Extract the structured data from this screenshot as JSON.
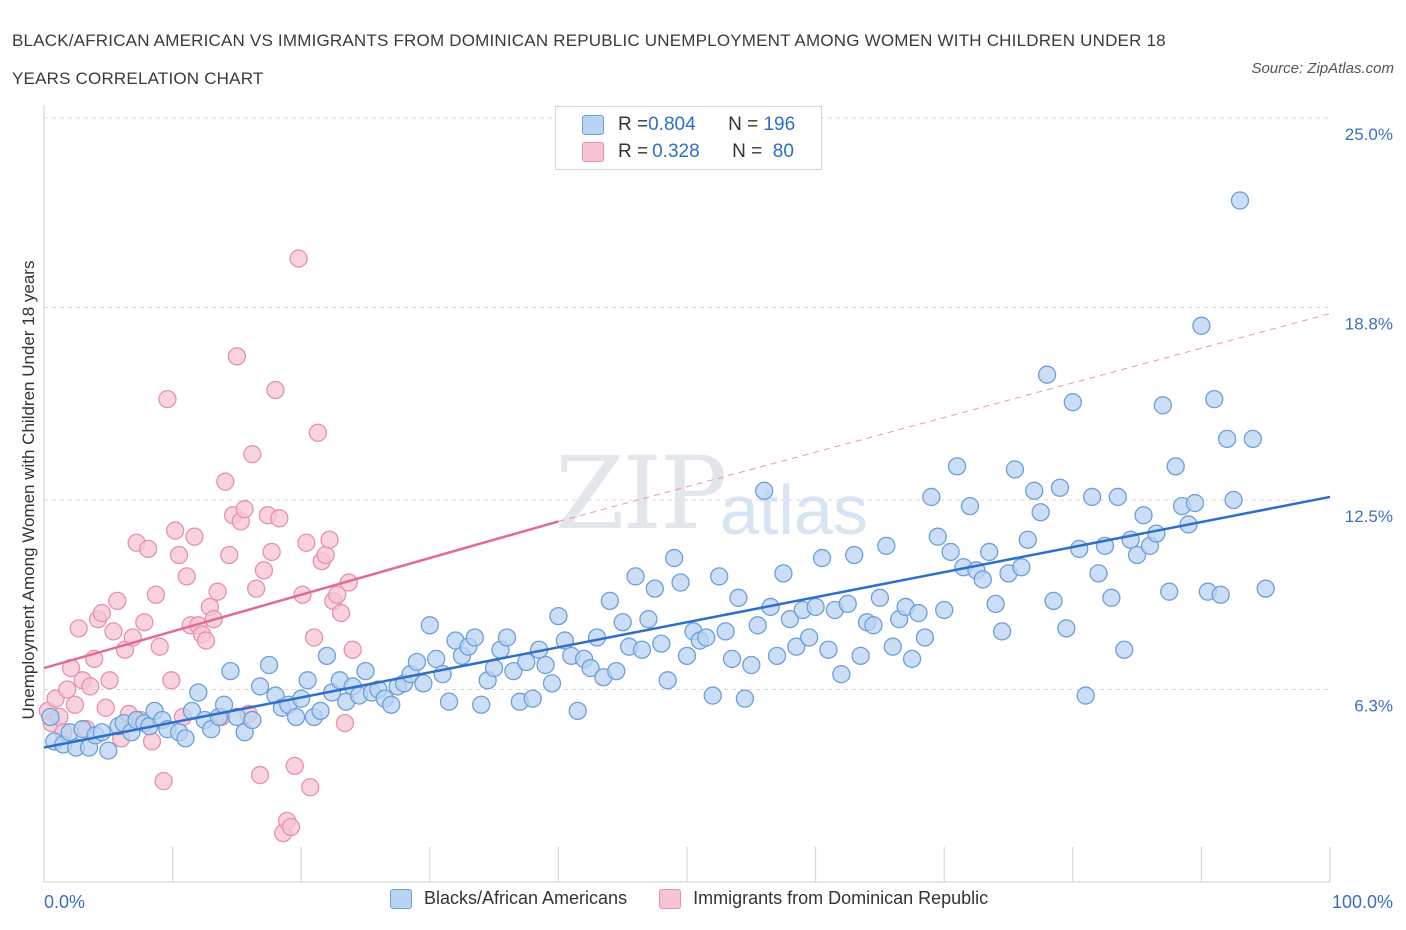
{
  "title": "BLACK/AFRICAN AMERICAN VS IMMIGRANTS FROM DOMINICAN REPUBLIC UNEMPLOYMENT AMONG WOMEN WITH CHILDREN UNDER 18 YEARS CORRELATION CHART",
  "source": "Source: ZipAtlas.com",
  "watermark": {
    "zip": "ZIP",
    "atlas": "atlas"
  },
  "legend": {
    "blue": {
      "r_label": "R = ",
      "r_value": "0.804",
      "n_label": "N = ",
      "n_value": "196"
    },
    "pink": {
      "r_label": "R = ",
      "r_value": "0.328",
      "n_label": "N = ",
      "n_value": " 80"
    }
  },
  "colors": {
    "blue_fill": "#b9d3f3",
    "blue_stroke": "#6d9fd8",
    "blue_line": "#2e6fcc",
    "pink_fill": "#f6c4d3",
    "pink_stroke": "#e891ad",
    "pink_line": "#e06b93",
    "tick_text": "#3c6fbf",
    "grid": "#d9d9d9"
  },
  "chart_data": {
    "type": "scatter",
    "title": "BLACK/AFRICAN AMERICAN VS IMMIGRANTS FROM DOMINICAN REPUBLIC UNEMPLOYMENT AMONG WOMEN WITH CHILDREN UNDER 18 YEARS CORRELATION CHART",
    "xlabel": "",
    "ylabel": "Unemployment Among Women with Children Under 18 years",
    "xlim": [
      0,
      100
    ],
    "ylim": [
      0,
      25
    ],
    "x_tick_labels": [
      "0.0%",
      "100.0%"
    ],
    "y_ticks": [
      6.3,
      12.5,
      18.8,
      25.0
    ],
    "y_tick_labels": [
      "6.3%",
      "12.5%",
      "18.8%",
      "25.0%"
    ],
    "grid": "horizontal dashed",
    "legend_position": "top-center",
    "series": [
      {
        "name": "Blacks/African Americans",
        "color": "#6d9fd8",
        "trend": {
          "x0": 0,
          "y0": 4.4,
          "x1": 100,
          "y1": 12.6
        },
        "points": [
          [
            0.5,
            5.4
          ],
          [
            0.8,
            4.6
          ],
          [
            1.5,
            4.5
          ],
          [
            2.0,
            4.9
          ],
          [
            2.5,
            4.4
          ],
          [
            3,
            5.0
          ],
          [
            3.5,
            4.4
          ],
          [
            4,
            4.8
          ],
          [
            4.5,
            4.9
          ],
          [
            5,
            4.3
          ],
          [
            5.8,
            5.1
          ],
          [
            6.2,
            5.2
          ],
          [
            6.8,
            4.9
          ],
          [
            7.2,
            5.3
          ],
          [
            7.8,
            5.2
          ],
          [
            8.2,
            5.1
          ],
          [
            8.6,
            5.6
          ],
          [
            9.2,
            5.3
          ],
          [
            9.6,
            5.0
          ],
          [
            10.5,
            4.9
          ],
          [
            11,
            4.7
          ],
          [
            11.5,
            5.6
          ],
          [
            12,
            6.2
          ],
          [
            12.5,
            5.3
          ],
          [
            13,
            5.0
          ],
          [
            13.6,
            5.4
          ],
          [
            14,
            5.8
          ],
          [
            14.5,
            6.9
          ],
          [
            15,
            5.4
          ],
          [
            15.6,
            4.9
          ],
          [
            16.2,
            5.3
          ],
          [
            16.8,
            6.4
          ],
          [
            17.5,
            7.1
          ],
          [
            18,
            6.1
          ],
          [
            18.5,
            5.7
          ],
          [
            19,
            5.8
          ],
          [
            19.6,
            5.4
          ],
          [
            20,
            6.0
          ],
          [
            20.5,
            6.6
          ],
          [
            21,
            5.4
          ],
          [
            21.5,
            5.6
          ],
          [
            22,
            7.4
          ],
          [
            22.4,
            6.2
          ],
          [
            23,
            6.6
          ],
          [
            23.5,
            5.9
          ],
          [
            24,
            6.4
          ],
          [
            24.5,
            6.1
          ],
          [
            25,
            6.9
          ],
          [
            25.5,
            6.2
          ],
          [
            26,
            6.3
          ],
          [
            26.5,
            6.0
          ],
          [
            27,
            5.8
          ],
          [
            27.5,
            6.4
          ],
          [
            28,
            6.5
          ],
          [
            28.5,
            6.8
          ],
          [
            29,
            7.2
          ],
          [
            29.5,
            6.5
          ],
          [
            30,
            8.4
          ],
          [
            30.5,
            7.3
          ],
          [
            31,
            6.8
          ],
          [
            31.5,
            5.9
          ],
          [
            32,
            7.9
          ],
          [
            32.5,
            7.4
          ],
          [
            33,
            7.7
          ],
          [
            33.5,
            8.0
          ],
          [
            34,
            5.8
          ],
          [
            34.5,
            6.6
          ],
          [
            35,
            7.0
          ],
          [
            35.5,
            7.6
          ],
          [
            36,
            8.0
          ],
          [
            36.5,
            6.9
          ],
          [
            37,
            5.9
          ],
          [
            37.5,
            7.2
          ],
          [
            38,
            6.0
          ],
          [
            38.5,
            7.6
          ],
          [
            39,
            7.1
          ],
          [
            39.5,
            6.5
          ],
          [
            40,
            8.7
          ],
          [
            40.5,
            7.9
          ],
          [
            41,
            7.4
          ],
          [
            41.5,
            5.6
          ],
          [
            42,
            7.3
          ],
          [
            42.5,
            7.0
          ],
          [
            43,
            8.0
          ],
          [
            43.5,
            6.7
          ],
          [
            44,
            9.2
          ],
          [
            44.5,
            6.9
          ],
          [
            45,
            8.5
          ],
          [
            45.5,
            7.7
          ],
          [
            46,
            10.0
          ],
          [
            46.5,
            7.6
          ],
          [
            47,
            8.6
          ],
          [
            47.5,
            9.6
          ],
          [
            48,
            7.8
          ],
          [
            48.5,
            6.6
          ],
          [
            49,
            10.6
          ],
          [
            49.5,
            9.8
          ],
          [
            50,
            7.4
          ],
          [
            50.5,
            8.2
          ],
          [
            51,
            7.9
          ],
          [
            51.5,
            8.0
          ],
          [
            52,
            6.1
          ],
          [
            52.5,
            10.0
          ],
          [
            53,
            8.2
          ],
          [
            53.5,
            7.3
          ],
          [
            54,
            9.3
          ],
          [
            54.5,
            6.0
          ],
          [
            55,
            7.1
          ],
          [
            55.5,
            8.4
          ],
          [
            56,
            12.8
          ],
          [
            56.5,
            9.0
          ],
          [
            57,
            7.4
          ],
          [
            57.5,
            10.1
          ],
          [
            58,
            8.6
          ],
          [
            58.5,
            7.7
          ],
          [
            59,
            8.9
          ],
          [
            59.5,
            8.0
          ],
          [
            60,
            9.0
          ],
          [
            60.5,
            10.6
          ],
          [
            61,
            7.6
          ],
          [
            61.5,
            8.9
          ],
          [
            62,
            6.8
          ],
          [
            62.5,
            9.1
          ],
          [
            63,
            10.7
          ],
          [
            63.5,
            7.4
          ],
          [
            64,
            8.5
          ],
          [
            64.5,
            8.4
          ],
          [
            65,
            9.3
          ],
          [
            65.5,
            11.0
          ],
          [
            66,
            7.7
          ],
          [
            66.5,
            8.6
          ],
          [
            67,
            9.0
          ],
          [
            67.5,
            7.3
          ],
          [
            68,
            8.8
          ],
          [
            68.5,
            8.0
          ],
          [
            69,
            12.6
          ],
          [
            69.5,
            11.3
          ],
          [
            70,
            8.9
          ],
          [
            70.5,
            10.8
          ],
          [
            71,
            13.6
          ],
          [
            71.5,
            10.3
          ],
          [
            72,
            12.3
          ],
          [
            72.5,
            10.2
          ],
          [
            73,
            9.9
          ],
          [
            73.5,
            10.8
          ],
          [
            74,
            9.1
          ],
          [
            74.5,
            8.2
          ],
          [
            75,
            10.1
          ],
          [
            75.5,
            13.5
          ],
          [
            76,
            10.3
          ],
          [
            76.5,
            11.2
          ],
          [
            77,
            12.8
          ],
          [
            77.5,
            12.1
          ],
          [
            78,
            16.6
          ],
          [
            78.5,
            9.2
          ],
          [
            79,
            12.9
          ],
          [
            79.5,
            8.3
          ],
          [
            80,
            15.7
          ],
          [
            80.5,
            10.9
          ],
          [
            81,
            6.1
          ],
          [
            81.5,
            12.6
          ],
          [
            82,
            10.1
          ],
          [
            82.5,
            11.0
          ],
          [
            83,
            9.3
          ],
          [
            83.5,
            12.6
          ],
          [
            84,
            7.6
          ],
          [
            84.5,
            11.2
          ],
          [
            85,
            10.7
          ],
          [
            85.5,
            12.0
          ],
          [
            86,
            11.0
          ],
          [
            86.5,
            11.4
          ],
          [
            87,
            15.6
          ],
          [
            87.5,
            9.5
          ],
          [
            88,
            13.6
          ],
          [
            88.5,
            12.3
          ],
          [
            89,
            11.7
          ],
          [
            89.5,
            12.4
          ],
          [
            90,
            18.2
          ],
          [
            90.5,
            9.5
          ],
          [
            91,
            15.8
          ],
          [
            91.5,
            9.4
          ],
          [
            92,
            14.5
          ],
          [
            92.5,
            12.5
          ],
          [
            93,
            22.3
          ],
          [
            94,
            14.5
          ],
          [
            95,
            9.6
          ]
        ]
      },
      {
        "name": "Immigrants from Dominican Republic",
        "color": "#e891ad",
        "trend": {
          "x0": 0,
          "y0": 7.0,
          "x1": 40,
          "y1": 11.8,
          "dashed_to": {
            "x": 100,
            "y": 18.6
          }
        },
        "points": [
          [
            0.3,
            5.6
          ],
          [
            0.6,
            5.2
          ],
          [
            0.9,
            6.0
          ],
          [
            1.2,
            5.4
          ],
          [
            1.5,
            4.9
          ],
          [
            1.8,
            6.3
          ],
          [
            2.1,
            7.0
          ],
          [
            2.4,
            5.8
          ],
          [
            2.7,
            8.3
          ],
          [
            3.0,
            6.6
          ],
          [
            3.3,
            5.0
          ],
          [
            3.6,
            6.4
          ],
          [
            3.9,
            7.3
          ],
          [
            4.2,
            8.6
          ],
          [
            4.5,
            8.8
          ],
          [
            4.8,
            5.7
          ],
          [
            5.1,
            6.6
          ],
          [
            5.4,
            8.2
          ],
          [
            5.7,
            9.2
          ],
          [
            6.0,
            4.7
          ],
          [
            6.3,
            7.6
          ],
          [
            6.6,
            5.5
          ],
          [
            6.9,
            8.0
          ],
          [
            7.2,
            11.1
          ],
          [
            7.5,
            5.3
          ],
          [
            7.8,
            8.5
          ],
          [
            8.1,
            10.9
          ],
          [
            8.4,
            4.6
          ],
          [
            8.7,
            9.4
          ],
          [
            9.0,
            7.7
          ],
          [
            9.3,
            3.3
          ],
          [
            9.6,
            15.8
          ],
          [
            9.9,
            6.6
          ],
          [
            10.2,
            11.5
          ],
          [
            10.5,
            10.7
          ],
          [
            10.8,
            5.4
          ],
          [
            11.1,
            10.0
          ],
          [
            11.4,
            8.4
          ],
          [
            11.7,
            11.3
          ],
          [
            12.0,
            8.4
          ],
          [
            12.3,
            8.1
          ],
          [
            12.6,
            7.9
          ],
          [
            12.9,
            9.0
          ],
          [
            13.2,
            8.6
          ],
          [
            13.5,
            9.5
          ],
          [
            13.8,
            5.4
          ],
          [
            14.1,
            13.1
          ],
          [
            14.4,
            10.7
          ],
          [
            14.7,
            12.0
          ],
          [
            15.0,
            17.2
          ],
          [
            15.3,
            11.8
          ],
          [
            15.6,
            12.2
          ],
          [
            15.9,
            5.5
          ],
          [
            16.2,
            14.0
          ],
          [
            16.5,
            9.6
          ],
          [
            16.8,
            3.5
          ],
          [
            17.1,
            10.2
          ],
          [
            17.4,
            12.0
          ],
          [
            17.7,
            10.8
          ],
          [
            18.0,
            16.1
          ],
          [
            18.3,
            11.9
          ],
          [
            18.6,
            1.6
          ],
          [
            18.9,
            2.0
          ],
          [
            19.2,
            1.8
          ],
          [
            19.5,
            3.8
          ],
          [
            19.8,
            20.4
          ],
          [
            20.1,
            9.4
          ],
          [
            20.4,
            11.1
          ],
          [
            20.7,
            3.1
          ],
          [
            21.0,
            8.0
          ],
          [
            21.3,
            14.7
          ],
          [
            21.6,
            10.5
          ],
          [
            21.9,
            10.7
          ],
          [
            22.2,
            11.2
          ],
          [
            22.5,
            9.2
          ],
          [
            22.8,
            9.4
          ],
          [
            23.1,
            8.8
          ],
          [
            23.4,
            5.2
          ],
          [
            23.7,
            9.8
          ],
          [
            24.0,
            7.6
          ]
        ]
      }
    ]
  },
  "bottom_legend": {
    "blue_label": "Blacks/African Americans",
    "pink_label": "Immigrants from Dominican Republic"
  }
}
